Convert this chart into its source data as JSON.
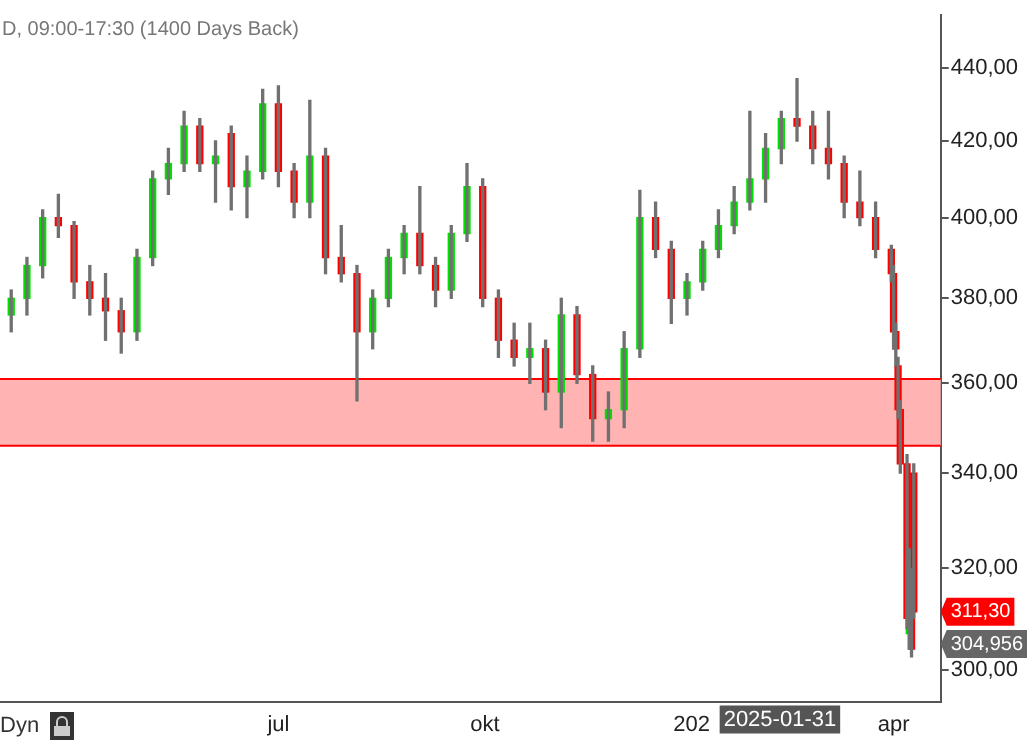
{
  "chart_data": {
    "type": "candlestick",
    "title": "D, 09:00-17:30 (1400 Days Back)",
    "x": [
      "2024-03-04",
      "2024-03-11",
      "2024-03-18",
      "2024-03-25",
      "2024-04-01",
      "2024-04-08",
      "2024-04-15",
      "2024-04-22",
      "2024-04-29",
      "2024-05-06",
      "2024-05-13",
      "2024-05-20",
      "2024-05-27",
      "2024-06-03",
      "2024-06-10",
      "2024-06-17",
      "2024-06-24",
      "2024-07-01",
      "2024-07-08",
      "2024-07-15",
      "2024-07-22",
      "2024-07-29",
      "2024-08-05",
      "2024-08-12",
      "2024-08-19",
      "2024-08-26",
      "2024-09-02",
      "2024-09-09",
      "2024-09-16",
      "2024-09-23",
      "2024-09-30",
      "2024-10-07",
      "2024-10-14",
      "2024-10-21",
      "2024-10-28",
      "2024-11-04",
      "2024-11-11",
      "2024-11-18",
      "2024-11-25",
      "2024-12-02",
      "2024-12-09",
      "2024-12-16",
      "2024-12-23",
      "2024-12-30",
      "2025-01-06",
      "2025-01-13",
      "2025-01-20",
      "2025-01-27",
      "2025-02-03",
      "2025-02-10",
      "2025-02-17",
      "2025-02-24",
      "2025-03-03",
      "2025-03-10",
      "2025-03-17",
      "2025-03-24",
      "2025-03-31",
      "2025-04-01",
      "2025-04-02",
      "2025-04-03",
      "2025-04-04",
      "2025-04-07",
      "2025-04-08",
      "2025-04-09",
      "2025-04-10"
    ],
    "ohlc": [
      [
        376,
        382,
        372,
        380
      ],
      [
        380,
        390,
        376,
        388
      ],
      [
        388,
        402,
        385,
        400
      ],
      [
        400,
        406,
        395,
        398
      ],
      [
        398,
        399,
        380,
        384
      ],
      [
        384,
        388,
        376,
        380
      ],
      [
        380,
        386,
        370,
        377
      ],
      [
        377,
        380,
        367,
        372
      ],
      [
        372,
        392,
        370,
        390
      ],
      [
        390,
        412,
        388,
        410
      ],
      [
        410,
        418,
        406,
        414
      ],
      [
        414,
        428,
        412,
        424
      ],
      [
        424,
        426,
        412,
        414
      ],
      [
        414,
        420,
        404,
        416
      ],
      [
        422,
        424,
        402,
        408
      ],
      [
        408,
        416,
        400,
        412
      ],
      [
        412,
        434,
        410,
        430
      ],
      [
        430,
        435,
        408,
        412
      ],
      [
        412,
        414,
        400,
        404
      ],
      [
        404,
        431,
        400,
        416
      ],
      [
        416,
        418,
        386,
        390
      ],
      [
        390,
        398,
        384,
        386
      ],
      [
        386,
        388,
        356,
        372
      ],
      [
        372,
        382,
        368,
        380
      ],
      [
        380,
        392,
        378,
        390
      ],
      [
        390,
        398,
        386,
        396
      ],
      [
        396,
        408,
        386,
        388
      ],
      [
        388,
        390,
        378,
        382
      ],
      [
        382,
        398,
        380,
        396
      ],
      [
        396,
        414,
        394,
        408
      ],
      [
        408,
        410,
        378,
        380
      ],
      [
        380,
        382,
        366,
        370
      ],
      [
        370,
        374,
        364,
        366
      ],
      [
        366,
        374,
        360,
        368
      ],
      [
        368,
        370,
        354,
        358
      ],
      [
        358,
        380,
        350,
        376
      ],
      [
        376,
        378,
        360,
        362
      ],
      [
        362,
        364,
        347,
        352
      ],
      [
        352,
        358,
        347,
        354
      ],
      [
        354,
        372,
        350,
        368
      ],
      [
        368,
        407,
        366,
        400
      ],
      [
        400,
        404,
        390,
        392
      ],
      [
        392,
        394,
        374,
        380
      ],
      [
        380,
        386,
        376,
        384
      ],
      [
        384,
        394,
        382,
        392
      ],
      [
        392,
        402,
        390,
        398
      ],
      [
        398,
        408,
        396,
        404
      ],
      [
        404,
        428,
        402,
        410
      ],
      [
        410,
        422,
        404,
        418
      ],
      [
        418,
        428,
        414,
        426
      ],
      [
        426,
        437,
        420,
        424
      ],
      [
        424,
        428,
        414,
        418
      ],
      [
        418,
        428,
        410,
        414
      ],
      [
        414,
        416,
        400,
        404
      ],
      [
        404,
        412,
        398,
        400
      ],
      [
        400,
        404,
        390,
        392
      ],
      [
        392,
        393,
        384,
        386
      ],
      [
        386,
        388,
        368,
        372
      ],
      [
        372,
        374,
        364,
        368
      ],
      [
        364,
        366,
        352,
        354
      ],
      [
        354,
        356,
        340,
        342
      ],
      [
        342,
        344,
        308,
        310
      ],
      [
        307,
        324,
        304,
        322
      ],
      [
        318,
        320,
        302.5,
        304
      ],
      [
        340,
        342,
        310,
        311.3
      ]
    ],
    "xlim": [
      "2024-02-28",
      "2025-04-22"
    ],
    "xticks": [
      {
        "value": "2024-07-01",
        "label": "jul"
      },
      {
        "value": "2024-10-01",
        "label": "okt"
      },
      {
        "value": "2025-01-01",
        "label": "202"
      },
      {
        "value": "2025-04-01",
        "label": "apr"
      }
    ],
    "ylim": [
      294,
      455
    ],
    "log": true,
    "yticks": [
      {
        "value": 300,
        "label": "300,00"
      },
      {
        "value": 320,
        "label": "320,00"
      },
      {
        "value": 340,
        "label": "340,00"
      },
      {
        "value": 360,
        "label": "360,00"
      },
      {
        "value": 380,
        "label": "380,00"
      },
      {
        "value": 400,
        "label": "400,00"
      },
      {
        "value": 420,
        "label": "420,00"
      },
      {
        "value": 440,
        "label": "440,00"
      }
    ],
    "bands": [
      {
        "axis": "y",
        "from": 346,
        "to": 361,
        "color": "#ffb3b3"
      }
    ],
    "ref_lines": [
      {
        "axis": "y",
        "value": 361,
        "color": "#ff0000"
      },
      {
        "axis": "y",
        "value": 346,
        "color": "#ff0000"
      }
    ],
    "annotations": [
      "Dyn",
      {
        "text": "311,30",
        "y": 311.3
      },
      {
        "text": "304,956",
        "y": 304.956
      },
      "2025-01-31"
    ]
  }
}
